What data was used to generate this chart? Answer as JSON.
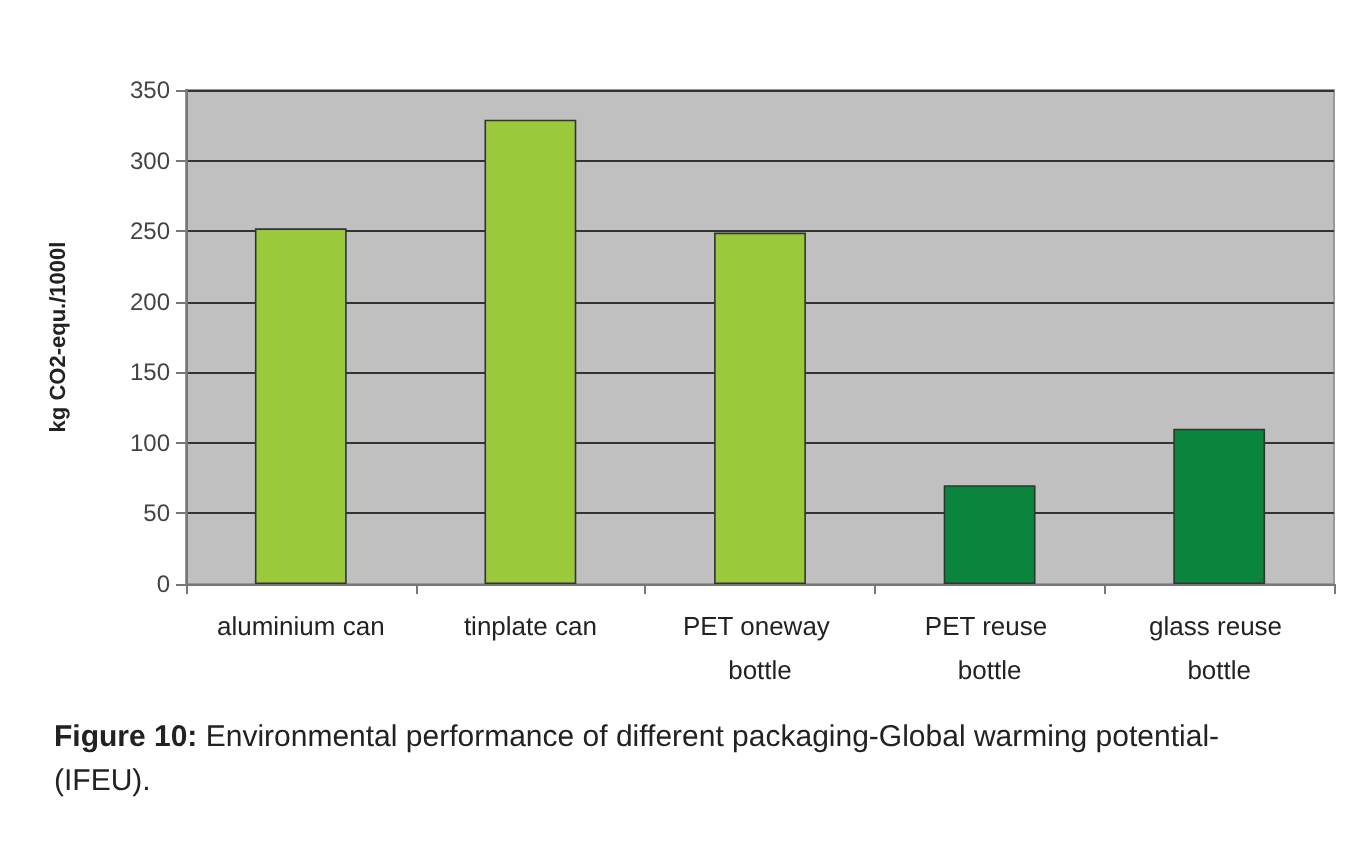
{
  "chart_data": {
    "type": "bar",
    "ylabel": "kg CO2-equ./1000l",
    "categories": [
      "aluminium can",
      "tinplate can",
      "PET oneway bottle",
      "PET reuse bottle",
      "glass reuse bottle"
    ],
    "values": [
      252,
      329,
      249,
      70,
      110
    ],
    "colors": [
      "#9aca3c",
      "#9aca3c",
      "#9aca3c",
      "#0b843e",
      "#0b843e"
    ],
    "ylim": [
      0,
      350
    ],
    "yticks": [
      0,
      50,
      100,
      150,
      200,
      250,
      300,
      350
    ],
    "grid": "y",
    "annotations": [
      "Figure 10: Environmental performance of different packaging-Global warming potential-(IFEU)."
    ]
  }
}
